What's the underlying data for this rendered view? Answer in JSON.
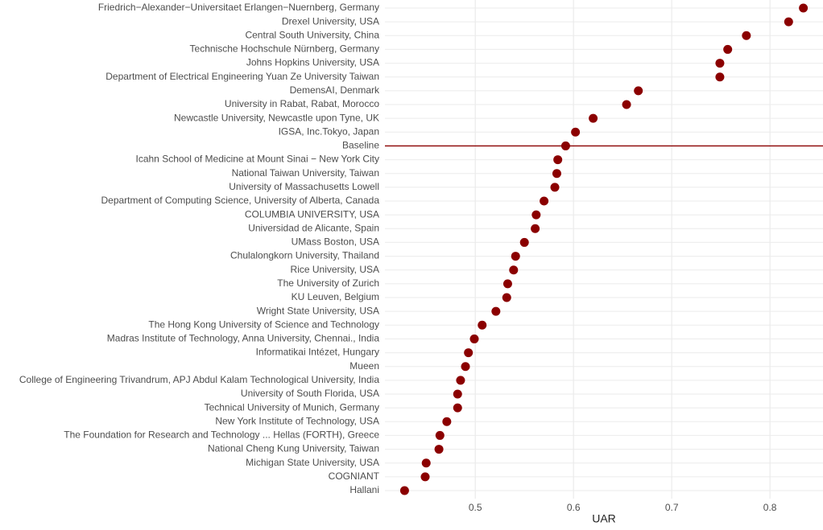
{
  "chart_data": {
    "type": "dot",
    "xlabel": "UAR",
    "categories": [
      "Friedrich−Alexander−Universitaet Erlangen−Nuernberg, Germany",
      "Drexel University, USA",
      "Central South University, China",
      "Technische Hochschule Nürnberg, Germany",
      "Johns Hopkins University, USA",
      "Department of Electrical Engineering  Yuan Ze University  Taiwan",
      "DemensAI, Denmark",
      "University in Rabat, Rabat, Morocco",
      "Newcastle University, Newcastle upon Tyne, UK",
      "IGSA, Inc.Tokyo, Japan",
      "Baseline",
      "Icahn School of Medicine at Mount Sinai − New York City",
      "National Taiwan University, Taiwan",
      "University of Massachusetts Lowell",
      "Department of Computing Science, University of Alberta, Canada",
      "COLUMBIA UNIVERSITY, USA",
      "Universidad de Alicante, Spain",
      "UMass Boston, USA",
      "Chulalongkorn University, Thailand",
      "Rice University, USA",
      "The University of Zurich",
      "KU Leuven, Belgium",
      "Wright State University, USA",
      "The Hong Kong University of Science and Technology",
      "Madras Institute of Technology, Anna University, Chennai., India",
      "Informatikai Intézet, Hungary",
      "Mueen",
      "College of Engineering Trivandrum,  APJ Abdul Kalam Technological University, India",
      "University of South Florida, USA",
      "Technical University of Munich, Germany",
      "New York Institute of Technology, USA",
      "The Foundation for Research and Technology ... Hellas (FORTH), Greece",
      "National Cheng Kung University, Taiwan",
      "Michigan State University, USA",
      "COGNIANT",
      "Hallani"
    ],
    "values": [
      0.834,
      0.819,
      0.776,
      0.757,
      0.749,
      0.749,
      0.666,
      0.654,
      0.62,
      0.602,
      0.592,
      0.584,
      0.583,
      0.581,
      0.57,
      0.562,
      0.561,
      0.55,
      0.541,
      0.539,
      0.533,
      0.532,
      0.521,
      0.507,
      0.499,
      0.493,
      0.49,
      0.485,
      0.482,
      0.482,
      0.471,
      0.464,
      0.463,
      0.45,
      0.449,
      0.428
    ],
    "color": "#8b0000",
    "highlight": "Baseline",
    "xlim": [
      0.408,
      0.854
    ],
    "xticks": [
      0.5,
      0.6,
      0.7,
      0.8
    ],
    "grid": true
  }
}
